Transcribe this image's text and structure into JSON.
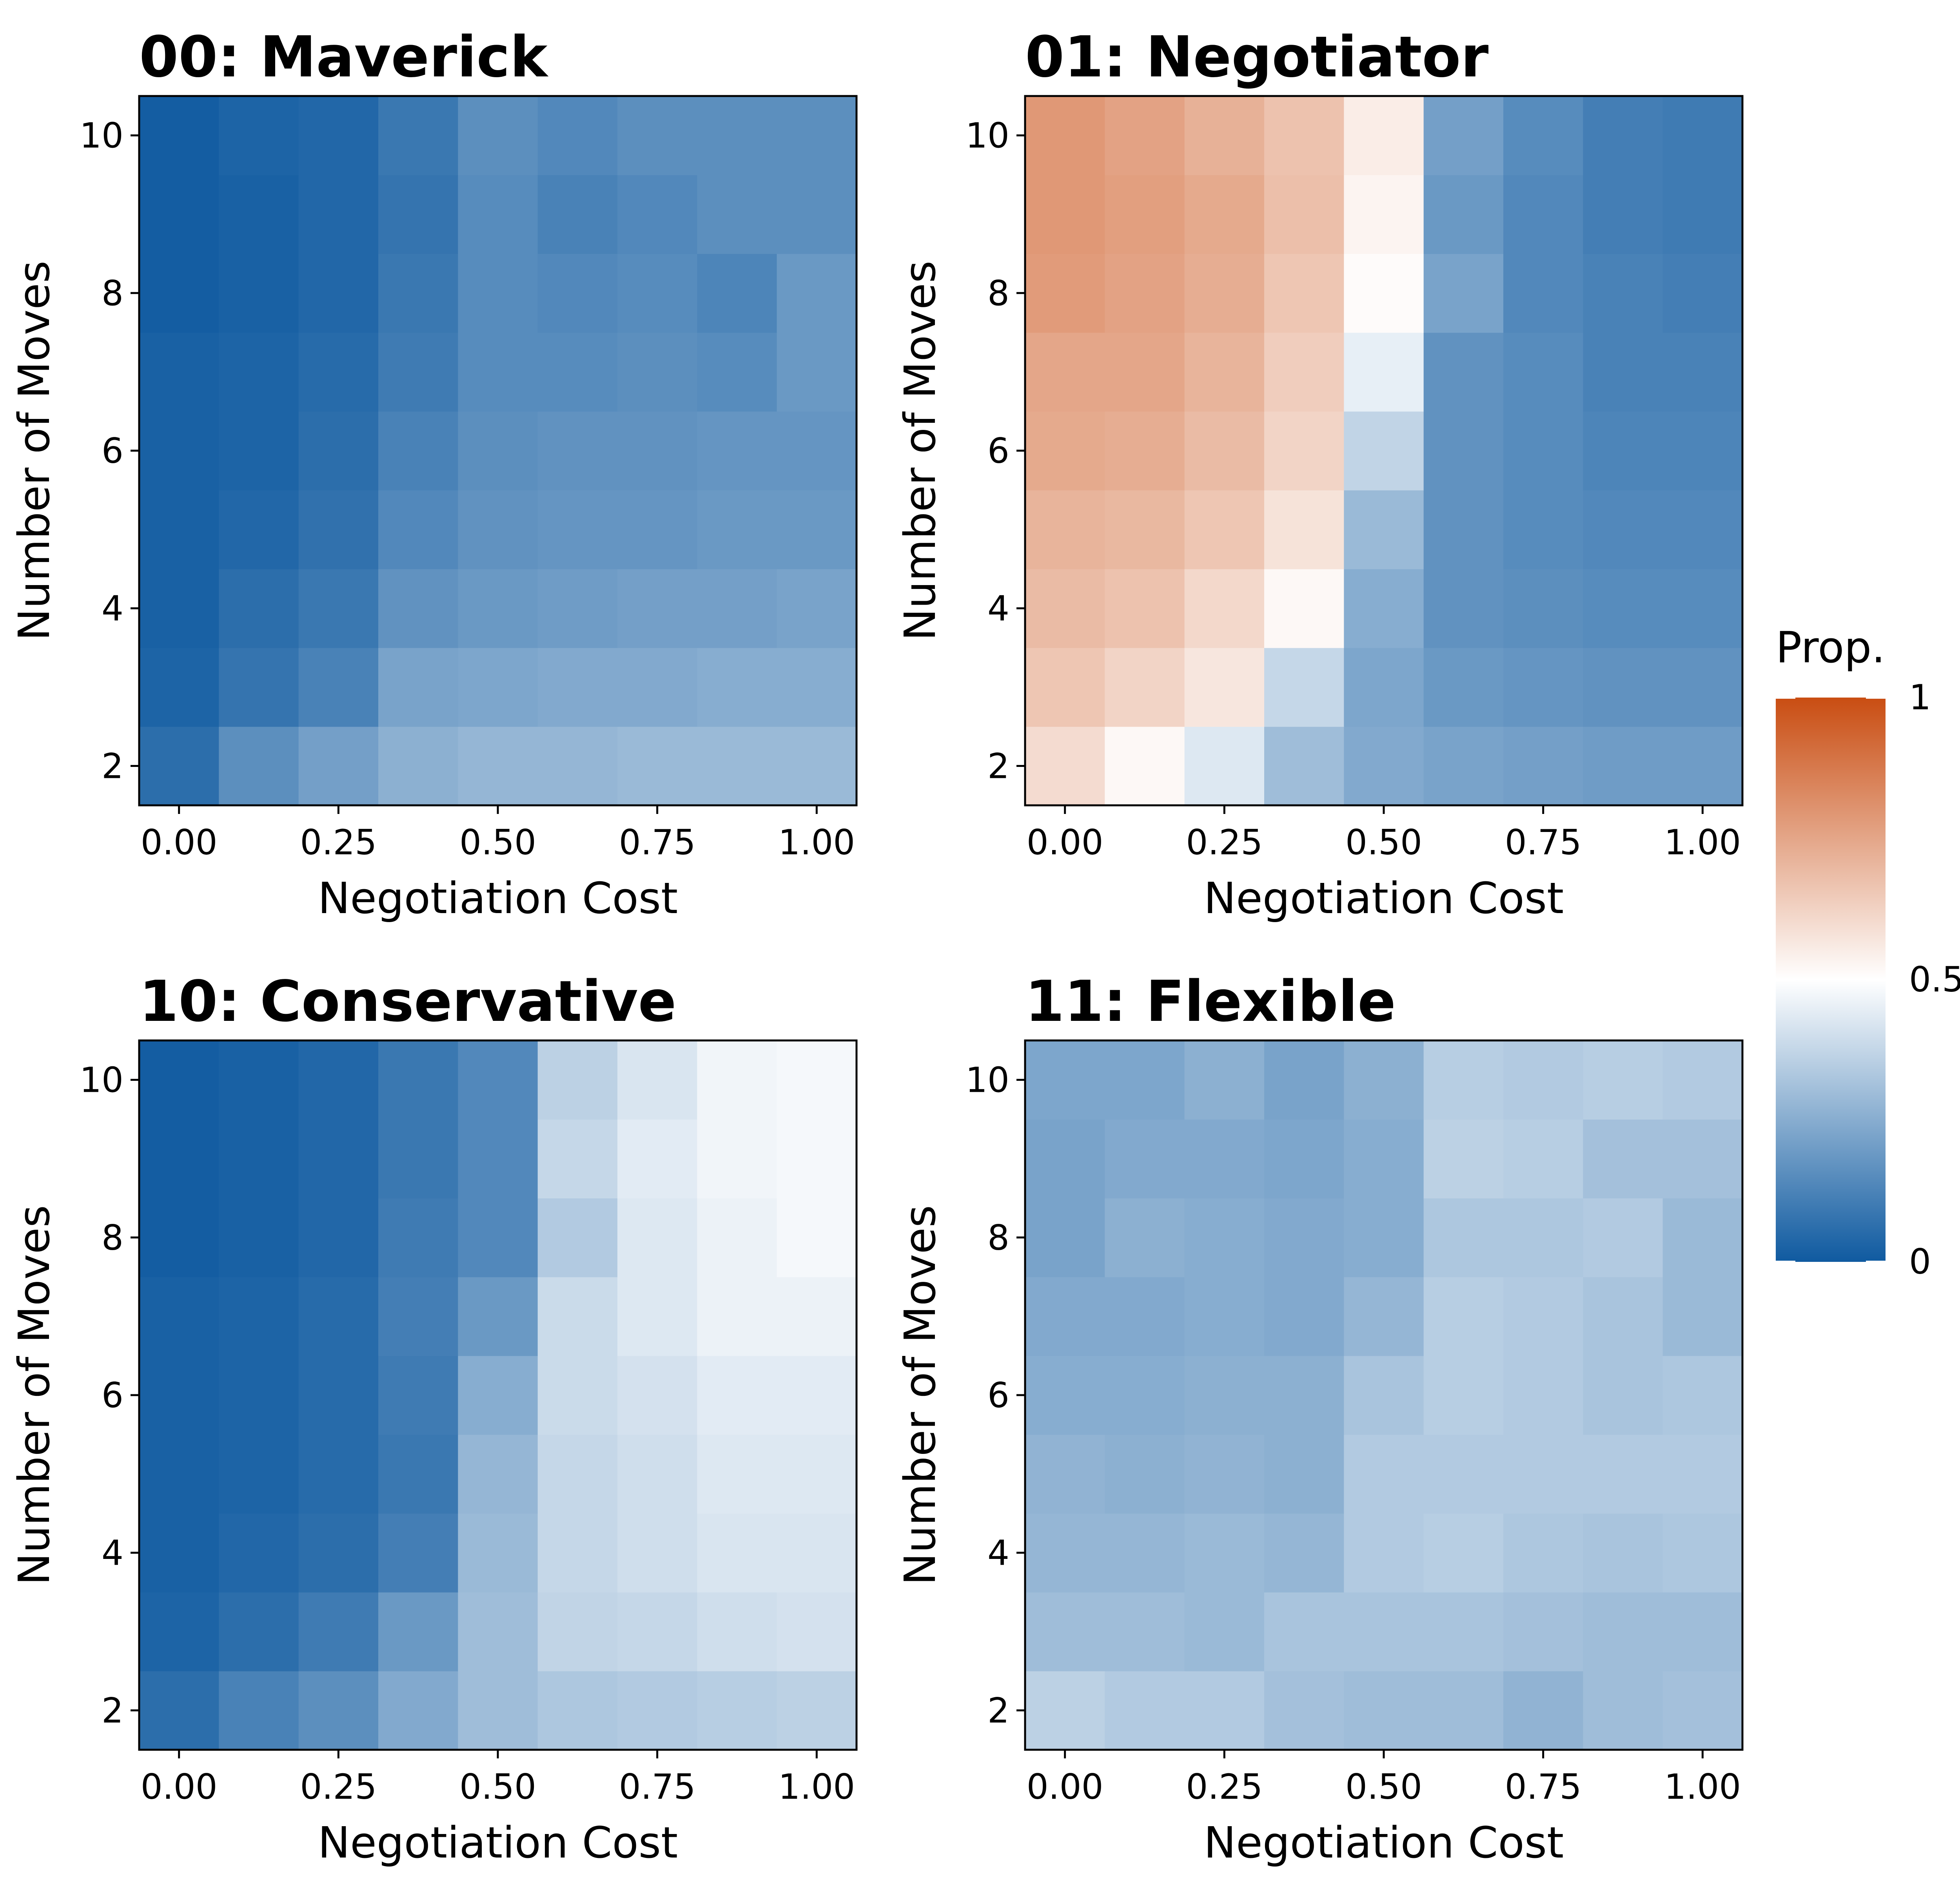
{
  "palette": {
    "low": "#0f5aa0",
    "mid": "#ffffff",
    "high": "#c94d12"
  },
  "legend": {
    "title": "Prop.",
    "ticks": [
      {
        "value": 1,
        "label": "1"
      },
      {
        "value": 0.5,
        "label": "0.5"
      },
      {
        "value": 0,
        "label": "0"
      }
    ]
  },
  "chart_data": [
    {
      "type": "heatmap",
      "title": "00: Maverick",
      "xlabel": "Negotiation Cost",
      "ylabel": "Number of Moves",
      "x": [
        0,
        0.125,
        0.25,
        0.375,
        0.5,
        0.625,
        0.75,
        0.875,
        1
      ],
      "y": [
        2,
        3,
        4,
        5,
        6,
        7,
        8,
        9,
        10
      ],
      "xticks": [
        {
          "value": 0,
          "label": "0.00"
        },
        {
          "value": 0.25,
          "label": "0.25"
        },
        {
          "value": 0.5,
          "label": "0.50"
        },
        {
          "value": 0.75,
          "label": "0.75"
        },
        {
          "value": 1,
          "label": "1.00"
        }
      ],
      "yticks": [
        {
          "value": 2,
          "label": "2"
        },
        {
          "value": 4,
          "label": "4"
        },
        {
          "value": 6,
          "label": "6"
        },
        {
          "value": 8,
          "label": "8"
        },
        {
          "value": 10,
          "label": "10"
        }
      ],
      "values": [
        [
          0.06,
          0.16,
          0.21,
          0.26,
          0.28,
          0.28,
          0.29,
          0.29,
          0.29
        ],
        [
          0.03,
          0.08,
          0.12,
          0.22,
          0.23,
          0.24,
          0.24,
          0.25,
          0.25
        ],
        [
          0.02,
          0.06,
          0.09,
          0.17,
          0.19,
          0.2,
          0.21,
          0.21,
          0.22
        ],
        [
          0.02,
          0.04,
          0.07,
          0.14,
          0.17,
          0.18,
          0.18,
          0.19,
          0.19
        ],
        [
          0.02,
          0.03,
          0.06,
          0.12,
          0.16,
          0.17,
          0.17,
          0.18,
          0.18
        ],
        [
          0.02,
          0.03,
          0.05,
          0.1,
          0.15,
          0.15,
          0.16,
          0.15,
          0.19
        ],
        [
          0.01,
          0.02,
          0.04,
          0.09,
          0.15,
          0.14,
          0.15,
          0.13,
          0.19
        ],
        [
          0.01,
          0.02,
          0.04,
          0.08,
          0.15,
          0.12,
          0.14,
          0.16,
          0.16
        ],
        [
          0.01,
          0.03,
          0.04,
          0.09,
          0.16,
          0.14,
          0.16,
          0.16,
          0.16
        ]
      ]
    },
    {
      "type": "heatmap",
      "title": "01: Negotiator",
      "xlabel": "Negotiation Cost",
      "ylabel": "Number of Moves",
      "x": [
        0,
        0.125,
        0.25,
        0.375,
        0.5,
        0.625,
        0.75,
        0.875,
        1
      ],
      "y": [
        2,
        3,
        4,
        5,
        6,
        7,
        8,
        9,
        10
      ],
      "xticks": [
        {
          "value": 0,
          "label": "0.00"
        },
        {
          "value": 0.25,
          "label": "0.25"
        },
        {
          "value": 0.5,
          "label": "0.50"
        },
        {
          "value": 0.75,
          "label": "0.75"
        },
        {
          "value": 1,
          "label": "1.00"
        }
      ],
      "yticks": [
        {
          "value": 2,
          "label": "2"
        },
        {
          "value": 4,
          "label": "4"
        },
        {
          "value": 6,
          "label": "6"
        },
        {
          "value": 8,
          "label": "8"
        },
        {
          "value": 10,
          "label": "10"
        }
      ],
      "values": [
        [
          0.6,
          0.52,
          0.43,
          0.3,
          0.24,
          0.22,
          0.21,
          0.2,
          0.2
        ],
        [
          0.66,
          0.62,
          0.57,
          0.38,
          0.23,
          0.19,
          0.18,
          0.17,
          0.17
        ],
        [
          0.69,
          0.67,
          0.61,
          0.52,
          0.25,
          0.17,
          0.16,
          0.15,
          0.15
        ],
        [
          0.71,
          0.7,
          0.66,
          0.58,
          0.29,
          0.17,
          0.15,
          0.14,
          0.14
        ],
        [
          0.74,
          0.73,
          0.69,
          0.62,
          0.37,
          0.17,
          0.15,
          0.13,
          0.13
        ],
        [
          0.75,
          0.75,
          0.71,
          0.64,
          0.45,
          0.17,
          0.15,
          0.12,
          0.12
        ],
        [
          0.78,
          0.76,
          0.73,
          0.66,
          0.51,
          0.22,
          0.14,
          0.12,
          0.11
        ],
        [
          0.79,
          0.77,
          0.74,
          0.68,
          0.53,
          0.19,
          0.14,
          0.11,
          0.1
        ],
        [
          0.79,
          0.76,
          0.72,
          0.67,
          0.55,
          0.21,
          0.15,
          0.11,
          0.1
        ]
      ]
    },
    {
      "type": "heatmap",
      "title": "10: Conservative",
      "xlabel": "Negotiation Cost",
      "ylabel": "Number of Moves",
      "x": [
        0,
        0.125,
        0.25,
        0.375,
        0.5,
        0.625,
        0.75,
        0.875,
        1
      ],
      "y": [
        2,
        3,
        4,
        5,
        6,
        7,
        8,
        9,
        10
      ],
      "xticks": [
        {
          "value": 0,
          "label": "0.00"
        },
        {
          "value": 0.25,
          "label": "0.25"
        },
        {
          "value": 0.5,
          "label": "0.50"
        },
        {
          "value": 0.75,
          "label": "0.75"
        },
        {
          "value": 1,
          "label": "1.00"
        }
      ],
      "yticks": [
        {
          "value": 2,
          "label": "2"
        },
        {
          "value": 4,
          "label": "4"
        },
        {
          "value": 6,
          "label": "6"
        },
        {
          "value": 8,
          "label": "8"
        },
        {
          "value": 10,
          "label": "10"
        }
      ],
      "values": [
        [
          0.06,
          0.12,
          0.16,
          0.24,
          0.3,
          0.33,
          0.34,
          0.35,
          0.36
        ],
        [
          0.03,
          0.06,
          0.1,
          0.19,
          0.3,
          0.37,
          0.38,
          0.4,
          0.41
        ],
        [
          0.02,
          0.04,
          0.06,
          0.11,
          0.29,
          0.38,
          0.4,
          0.42,
          0.42
        ],
        [
          0.02,
          0.03,
          0.05,
          0.09,
          0.28,
          0.38,
          0.4,
          0.43,
          0.43
        ],
        [
          0.02,
          0.03,
          0.05,
          0.1,
          0.25,
          0.39,
          0.41,
          0.44,
          0.44
        ],
        [
          0.02,
          0.03,
          0.05,
          0.11,
          0.19,
          0.39,
          0.43,
          0.46,
          0.46
        ],
        [
          0.01,
          0.02,
          0.04,
          0.1,
          0.14,
          0.34,
          0.43,
          0.46,
          0.48
        ],
        [
          0.01,
          0.02,
          0.04,
          0.09,
          0.14,
          0.38,
          0.44,
          0.47,
          0.48
        ],
        [
          0.01,
          0.02,
          0.04,
          0.09,
          0.14,
          0.36,
          0.42,
          0.47,
          0.48
        ]
      ]
    },
    {
      "type": "heatmap",
      "title": "11: Flexible",
      "xlabel": "Negotiation Cost",
      "ylabel": "Number of Moves",
      "x": [
        0,
        0.125,
        0.25,
        0.375,
        0.5,
        0.625,
        0.75,
        0.875,
        1
      ],
      "y": [
        2,
        3,
        4,
        5,
        6,
        7,
        8,
        9,
        10
      ],
      "xticks": [
        {
          "value": 0,
          "label": "0.00"
        },
        {
          "value": 0.25,
          "label": "0.25"
        },
        {
          "value": 0.5,
          "label": "0.50"
        },
        {
          "value": 0.75,
          "label": "0.75"
        },
        {
          "value": 1,
          "label": "1.00"
        }
      ],
      "yticks": [
        {
          "value": 2,
          "label": "2"
        },
        {
          "value": 4,
          "label": "4"
        },
        {
          "value": 6,
          "label": "6"
        },
        {
          "value": 8,
          "label": "8"
        },
        {
          "value": 10,
          "label": "10"
        }
      ],
      "values": [
        [
          0.36,
          0.34,
          0.34,
          0.31,
          0.3,
          0.3,
          0.27,
          0.3,
          0.31
        ],
        [
          0.3,
          0.3,
          0.29,
          0.32,
          0.32,
          0.32,
          0.31,
          0.3,
          0.3
        ],
        [
          0.28,
          0.28,
          0.29,
          0.28,
          0.34,
          0.35,
          0.33,
          0.32,
          0.33
        ],
        [
          0.27,
          0.26,
          0.27,
          0.26,
          0.34,
          0.34,
          0.34,
          0.34,
          0.34
        ],
        [
          0.25,
          0.25,
          0.26,
          0.26,
          0.32,
          0.35,
          0.34,
          0.32,
          0.33
        ],
        [
          0.24,
          0.24,
          0.25,
          0.24,
          0.28,
          0.35,
          0.34,
          0.32,
          0.29
        ],
        [
          0.22,
          0.26,
          0.25,
          0.24,
          0.25,
          0.33,
          0.33,
          0.34,
          0.29
        ],
        [
          0.22,
          0.24,
          0.24,
          0.23,
          0.25,
          0.36,
          0.35,
          0.31,
          0.31
        ],
        [
          0.23,
          0.23,
          0.26,
          0.22,
          0.26,
          0.35,
          0.34,
          0.35,
          0.34
        ]
      ]
    }
  ]
}
